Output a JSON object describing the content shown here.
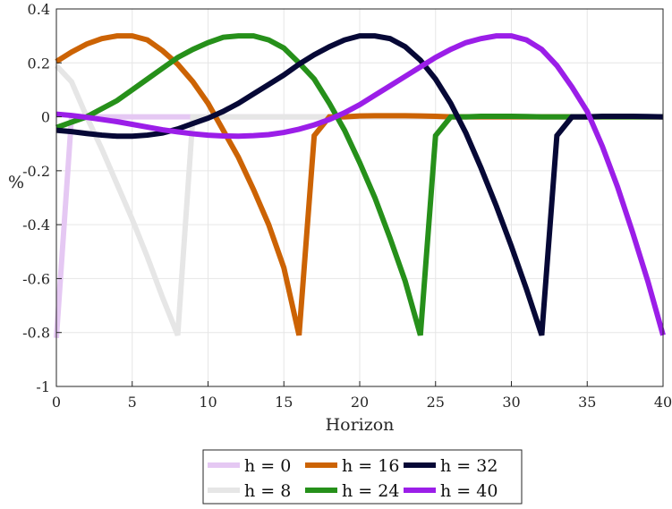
{
  "chart_data": {
    "type": "line",
    "xlabel": "Horizon",
    "ylabel": "%",
    "xlim": [
      0,
      40
    ],
    "ylim": [
      -1,
      0.4
    ],
    "x_ticks": [
      0,
      5,
      10,
      15,
      20,
      25,
      30,
      35,
      40
    ],
    "y_ticks": [
      -1,
      -0.8,
      -0.6,
      -0.4,
      -0.2,
      0,
      0.2,
      0.4
    ],
    "x_tick_labels": [
      "0",
      "5",
      "10",
      "15",
      "20",
      "25",
      "30",
      "35",
      "40"
    ],
    "y_tick_labels": [
      "-1",
      "-0.8",
      "-0.6",
      "-0.4",
      "-0.2",
      "0",
      "0.2",
      "0.4"
    ],
    "grid": true,
    "legend_position": "bottom-center",
    "x": [
      0,
      1,
      2,
      3,
      4,
      5,
      6,
      7,
      8,
      9,
      10,
      11,
      12,
      13,
      14,
      15,
      16,
      17,
      18,
      19,
      20,
      21,
      22,
      23,
      24,
      25,
      26,
      27,
      28,
      29,
      30,
      31,
      32,
      33,
      34,
      35,
      36,
      37,
      38,
      39,
      40
    ],
    "series": [
      {
        "name": "h = 0",
        "color": "#e5c8f3",
        "values": [
          -0.82,
          0,
          0,
          0,
          0,
          0,
          0,
          0,
          0,
          0,
          0,
          0,
          0,
          0,
          0,
          0,
          0,
          0,
          0,
          0,
          0,
          0,
          0,
          0,
          0,
          0,
          0,
          0,
          0,
          0,
          0,
          0,
          0,
          0,
          0,
          0,
          0,
          0,
          0,
          0,
          0
        ]
      },
      {
        "name": "h = 8",
        "color": "#e6e6e6",
        "values": [
          0.19,
          0.13,
          0.0,
          -0.12,
          -0.25,
          -0.38,
          -0.52,
          -0.67,
          -0.81,
          0,
          0,
          0,
          0,
          0,
          0,
          0,
          0,
          0,
          0,
          0,
          0,
          0,
          0,
          0,
          0,
          0,
          0,
          0,
          0,
          0,
          0,
          0,
          0,
          0,
          0,
          0,
          0,
          0,
          0,
          0,
          0
        ]
      },
      {
        "name": "h = 16",
        "color": "#cc6304",
        "values": [
          0.205,
          0.24,
          0.27,
          0.29,
          0.3,
          0.3,
          0.285,
          0.245,
          0.195,
          0.13,
          0.05,
          -0.05,
          -0.15,
          -0.27,
          -0.4,
          -0.56,
          -0.81,
          -0.07,
          0.0,
          0.0,
          0.003,
          0.004,
          0.004,
          0.004,
          0.003,
          0.002,
          0,
          0,
          0,
          0,
          0,
          0,
          0,
          0,
          0,
          0,
          0,
          0,
          0,
          0,
          0
        ]
      },
      {
        "name": "h = 24",
        "color": "#26901a",
        "values": [
          -0.04,
          -0.02,
          0.0,
          0.03,
          0.06,
          0.1,
          0.14,
          0.18,
          0.22,
          0.25,
          0.275,
          0.295,
          0.3,
          0.3,
          0.285,
          0.255,
          0.2,
          0.14,
          0.05,
          -0.05,
          -0.17,
          -0.3,
          -0.45,
          -0.61,
          -0.81,
          -0.07,
          0.0,
          0.0,
          0.002,
          0.002,
          0.002,
          0.001,
          0.0,
          0,
          0,
          0,
          0,
          0,
          0,
          0,
          0
        ]
      },
      {
        "name": "h = 32",
        "color": "#060836",
        "values": [
          -0.05,
          -0.055,
          -0.062,
          -0.068,
          -0.072,
          -0.072,
          -0.068,
          -0.06,
          -0.045,
          -0.025,
          -0.005,
          0.02,
          0.05,
          0.085,
          0.12,
          0.155,
          0.195,
          0.23,
          0.26,
          0.285,
          0.3,
          0.3,
          0.29,
          0.26,
          0.21,
          0.14,
          0.05,
          -0.06,
          -0.19,
          -0.33,
          -0.48,
          -0.64,
          -0.81,
          -0.07,
          0.0,
          0.0,
          0.002,
          0.002,
          0.002,
          0.001,
          0.0
        ]
      },
      {
        "name": "h = 40",
        "color": "#9b1ee8",
        "values": [
          0.01,
          0.005,
          -0.002,
          -0.01,
          -0.018,
          -0.028,
          -0.038,
          -0.048,
          -0.056,
          -0.063,
          -0.068,
          -0.071,
          -0.072,
          -0.07,
          -0.066,
          -0.058,
          -0.046,
          -0.03,
          -0.01,
          0.015,
          0.045,
          0.08,
          0.115,
          0.15,
          0.185,
          0.22,
          0.25,
          0.275,
          0.29,
          0.3,
          0.3,
          0.285,
          0.25,
          0.19,
          0.11,
          0.02,
          -0.11,
          -0.26,
          -0.43,
          -0.61,
          -0.81
        ]
      }
    ]
  }
}
